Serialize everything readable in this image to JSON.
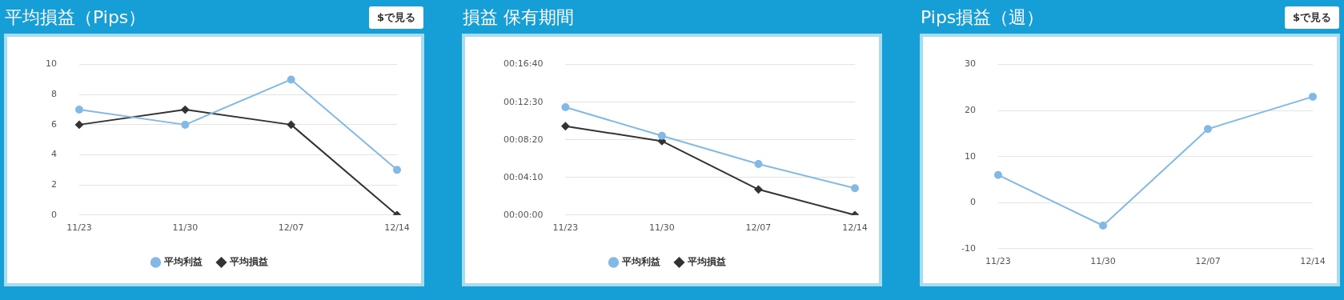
{
  "chart_data": [
    {
      "type": "line",
      "title": "平均損益（Pips）",
      "annotations": [
        "$で見る"
      ],
      "categories": [
        "11/23",
        "11/30",
        "12/07",
        "12/14"
      ],
      "series": [
        {
          "name": "平均利益",
          "color": "#82b9e6",
          "marker": "circle",
          "values": [
            7,
            6,
            9,
            3
          ]
        },
        {
          "name": "平均損益",
          "color": "#333333",
          "marker": "diamond",
          "values": [
            6,
            7,
            6,
            0
          ]
        }
      ],
      "ylim": [
        0,
        10
      ],
      "yticks": [
        0,
        2,
        4,
        6,
        8,
        10
      ],
      "grid": "y",
      "legend": "bottom",
      "line_style": "solid"
    },
    {
      "type": "line",
      "title": "損益 保有期間",
      "categories": [
        "11/23",
        "11/30",
        "12/07",
        "12/14"
      ],
      "series": [
        {
          "name": "平均利益",
          "color": "#82b9e6",
          "marker": "circle",
          "values": [
            716,
            526,
            339,
            178
          ]
        },
        {
          "name": "平均損益",
          "color": "#333333",
          "marker": "diamond",
          "values": [
            590,
            491,
            170,
            0
          ]
        }
      ],
      "ylim": [
        0,
        1000
      ],
      "yticks": [
        {
          "value": 0,
          "label": "00:00:00"
        },
        {
          "value": 250,
          "label": "00:04:10"
        },
        {
          "value": 500,
          "label": "00:08:20"
        },
        {
          "value": 750,
          "label": "00:12:30"
        },
        {
          "value": 1000,
          "label": "00:16:40"
        }
      ],
      "grid": "y",
      "legend": "bottom",
      "line_style": "solid"
    },
    {
      "type": "line",
      "title": "Pips損益（週）",
      "annotations": [
        "$で見る"
      ],
      "categories": [
        "11/23",
        "11/30",
        "12/07",
        "12/14"
      ],
      "series": [
        {
          "color": "#82b9e6",
          "marker": "circle",
          "values": [
            6,
            -5,
            16,
            23
          ]
        }
      ],
      "ylim": [
        -10,
        30
      ],
      "yticks": [
        -10,
        0,
        10,
        20,
        30
      ],
      "grid": "y",
      "line_style": "solid"
    }
  ]
}
